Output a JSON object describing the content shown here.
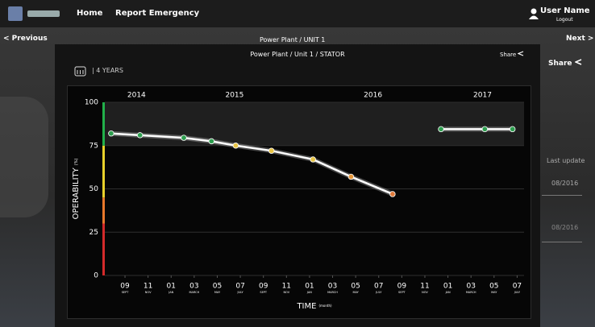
{
  "nav": {
    "items": [
      "Home",
      "Report Emergency"
    ],
    "user": "User Name",
    "logout": "Logout"
  },
  "subnav": {
    "previous": "< Previous",
    "title": "Power Plant / UNIT 1",
    "next": "Next >",
    "share": "Share"
  },
  "side": {
    "label": "Last update",
    "values": [
      "08/2016",
      "08/2016"
    ]
  },
  "modal": {
    "title": "Power Plant / Unit 1 / STATOR",
    "share": "Share",
    "range": "4 YEARS"
  },
  "chart_data": {
    "type": "line",
    "y_label": "OPERABILITY",
    "y_label_unit": "(%)",
    "x_label": "TIME",
    "x_label_unit": "(month)",
    "ylim": [
      0,
      100
    ],
    "yticks": [
      0,
      25,
      50,
      75,
      100
    ],
    "grid": true,
    "xlim": [
      -1.75,
      34.6
    ],
    "xticks": [
      {
        "value": 0,
        "label": "09",
        "sublabel": "SEPT"
      },
      {
        "value": 2,
        "label": "11",
        "sublabel": "NOV"
      },
      {
        "value": 4,
        "label": "01",
        "sublabel": "JAN"
      },
      {
        "value": 6,
        "label": "03",
        "sublabel": "MARCH"
      },
      {
        "value": 8,
        "label": "05",
        "sublabel": "MAY"
      },
      {
        "value": 10,
        "label": "07",
        "sublabel": "JULY"
      },
      {
        "value": 12,
        "label": "09",
        "sublabel": "SEPT"
      },
      {
        "value": 14,
        "label": "11",
        "sublabel": "NOV"
      },
      {
        "value": 16,
        "label": "01",
        "sublabel": "JAN"
      },
      {
        "value": 18,
        "label": "03",
        "sublabel": "MARCH"
      },
      {
        "value": 20,
        "label": "05",
        "sublabel": "MAY"
      },
      {
        "value": 22,
        "label": "07",
        "sublabel": "JULY"
      },
      {
        "value": 24,
        "label": "09",
        "sublabel": "SEPT"
      },
      {
        "value": 26,
        "label": "11",
        "sublabel": "NOV"
      },
      {
        "value": 28,
        "label": "01",
        "sublabel": "JAN"
      },
      {
        "value": 30,
        "label": "03",
        "sublabel": "MARCH"
      },
      {
        "value": 32,
        "label": "05",
        "sublabel": "MAY"
      },
      {
        "value": 34,
        "label": "07",
        "sublabel": "JULY"
      }
    ],
    "year_labels": [
      {
        "value": 1,
        "label": "2014"
      },
      {
        "value": 9.5,
        "label": "2015"
      },
      {
        "value": 21.5,
        "label": "2016"
      },
      {
        "value": 31,
        "label": "2017"
      }
    ],
    "x": [
      -1.2,
      1.3,
      5.1,
      7.5,
      9.6,
      12.7,
      16.3,
      19.6,
      23.2,
      null,
      27.4,
      31.2,
      33.6
    ],
    "values": [
      82,
      81,
      79.5,
      77.5,
      75,
      72,
      67,
      57,
      47,
      null,
      84.5,
      84.5,
      84.5
    ],
    "color": "#ffffff",
    "point_colors": [
      "#2e9e4f",
      "#2e9e4f",
      "#2e9e4f",
      "#2e9e4f",
      "#e8c547",
      "#e8c547",
      "#e8c547",
      "#e8983c",
      "#e07a3a",
      null,
      "#2e9e4f",
      "#2e9e4f",
      "#2e9e4f"
    ],
    "highlight_range": [
      75,
      100
    ],
    "bands": [
      {
        "from": 0,
        "to": 30,
        "color": "#d42a2a"
      },
      {
        "from": 30,
        "to": 45,
        "color": "#e8782a"
      },
      {
        "from": 45,
        "to": 75,
        "color": "#e8d02a"
      },
      {
        "from": 75,
        "to": 100,
        "color": "#22b04a"
      }
    ]
  }
}
